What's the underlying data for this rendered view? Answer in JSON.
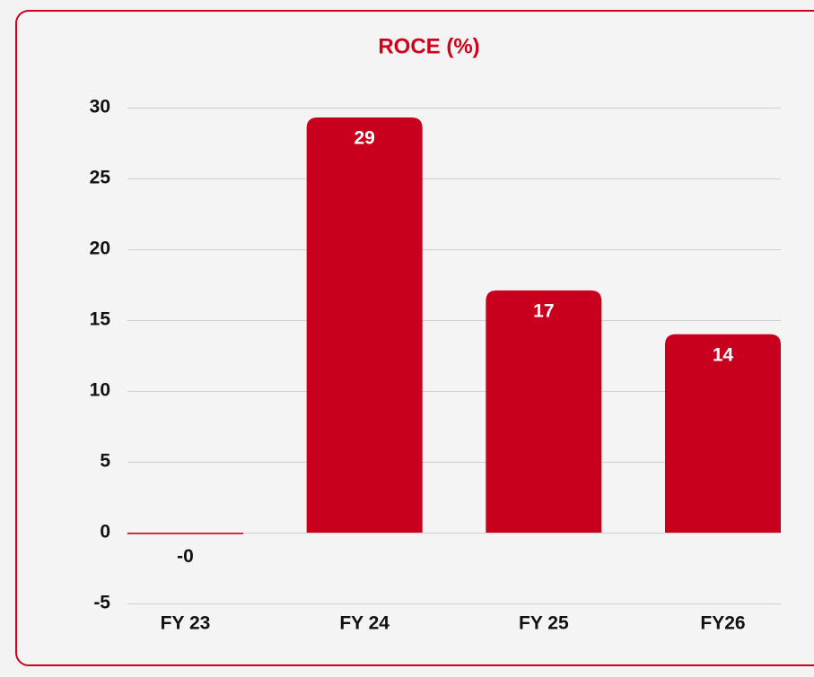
{
  "chart_data": {
    "type": "bar",
    "title": "ROCE (%)",
    "categories": [
      "FY 23",
      "FY 24",
      "FY 25",
      "FY26"
    ],
    "values": [
      -0.1,
      29.3,
      17.1,
      14.0
    ],
    "value_labels": [
      "-0",
      "29",
      "17",
      "14"
    ],
    "color": "#c8001e",
    "ylim": [
      -5,
      30
    ],
    "yticks": [
      -5,
      0,
      5,
      10,
      15,
      20,
      25,
      30
    ],
    "grid": true
  }
}
